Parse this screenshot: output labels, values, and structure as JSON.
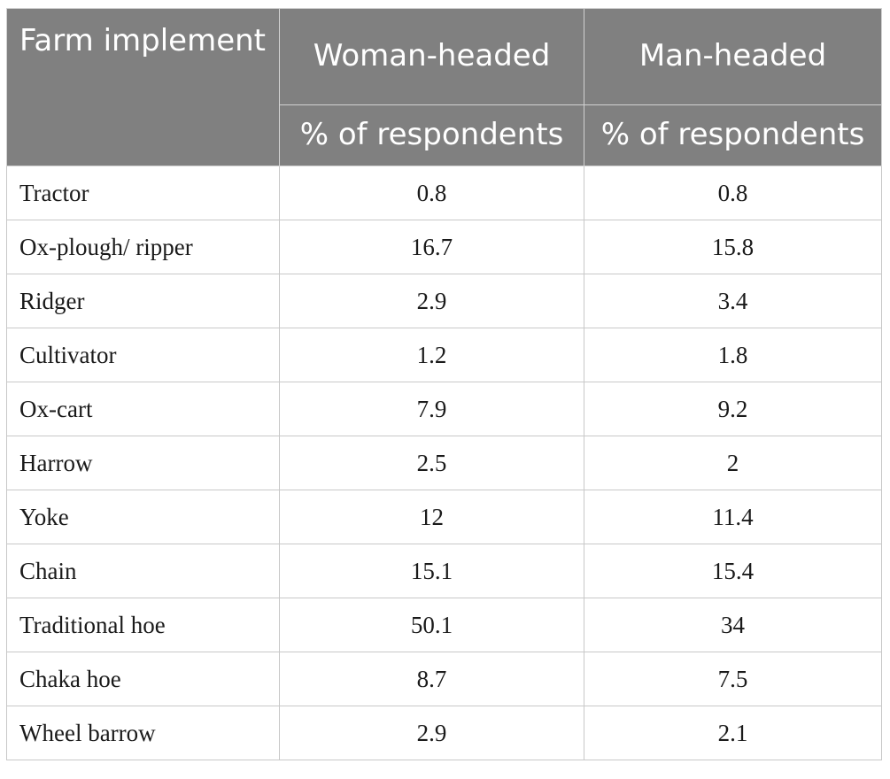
{
  "header": {
    "implement_label": "Farm implement",
    "groups": [
      "Woman-headed",
      "Man-headed"
    ],
    "subheaders": [
      "% of respondents",
      "% of respondents"
    ]
  },
  "rows": [
    {
      "implement": "Tractor",
      "woman": "0.8",
      "man": "0.8"
    },
    {
      "implement": "Ox-plough/ ripper",
      "woman": "16.7",
      "man": "15.8"
    },
    {
      "implement": "Ridger",
      "woman": "2.9",
      "man": "3.4"
    },
    {
      "implement": "Cultivator",
      "woman": "1.2",
      "man": "1.8"
    },
    {
      "implement": "Ox-cart",
      "woman": "7.9",
      "man": "9.2"
    },
    {
      "implement": "Harrow",
      "woman": "2.5",
      "man": "2"
    },
    {
      "implement": "Yoke",
      "woman": "12",
      "man": "11.4"
    },
    {
      "implement": "Chain",
      "woman": "15.1",
      "man": "15.4"
    },
    {
      "implement": "Traditional hoe",
      "woman": "50.1",
      "man": "34"
    },
    {
      "implement": "Chaka hoe",
      "woman": "8.7",
      "man": "7.5"
    },
    {
      "implement": "Wheel barrow",
      "woman": "2.9",
      "man": "2.1"
    }
  ]
}
